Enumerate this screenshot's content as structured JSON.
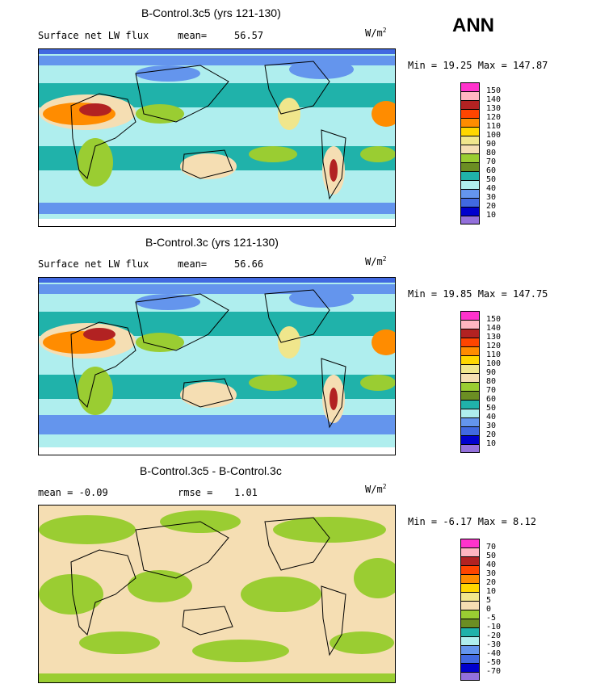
{
  "season": "ANN",
  "units_base": "W/m",
  "units_exp": "2",
  "panels": [
    {
      "title": "B-Control.3c5 (yrs 121-130)",
      "left_label": "Surface net LW flux",
      "mean_label": "mean=",
      "mean_value": "56.57",
      "minmax": "Min =  19.25 Max = 147.87",
      "colorbar": {
        "colors": [
          "#ff33cc",
          "#ffb6c1",
          "#b22222",
          "#ff4500",
          "#ff8c00",
          "#ffd700",
          "#f0e68c",
          "#f5deb3",
          "#9acd32",
          "#6b8e23",
          "#20b2aa",
          "#afeeee",
          "#6495ed",
          "#4169e1",
          "#0000cd",
          "#9370db"
        ],
        "labels": [
          "150",
          "140",
          "130",
          "120",
          "110",
          "100",
          "90",
          "80",
          "70",
          "60",
          "50",
          "40",
          "30",
          "20",
          "10"
        ]
      }
    },
    {
      "title": "B-Control.3c (yrs 121-130)",
      "left_label": "Surface net LW flux",
      "mean_label": "mean=",
      "mean_value": "56.66",
      "minmax": "Min =  19.85 Max = 147.75",
      "colorbar": {
        "colors": [
          "#ff33cc",
          "#ffb6c1",
          "#b22222",
          "#ff4500",
          "#ff8c00",
          "#ffd700",
          "#f0e68c",
          "#f5deb3",
          "#9acd32",
          "#6b8e23",
          "#20b2aa",
          "#afeeee",
          "#6495ed",
          "#4169e1",
          "#0000cd",
          "#9370db"
        ],
        "labels": [
          "150",
          "140",
          "130",
          "120",
          "110",
          "100",
          "90",
          "80",
          "70",
          "60",
          "50",
          "40",
          "30",
          "20",
          "10"
        ]
      }
    },
    {
      "title": "B-Control.3c5 - B-Control.3c",
      "left_label": "mean =  -0.09",
      "mean_label": "rmse =",
      "mean_value": "1.01",
      "minmax": "Min =  -6.17 Max =   8.12",
      "colorbar": {
        "colors": [
          "#ff33cc",
          "#ffb6c1",
          "#b22222",
          "#ff4500",
          "#ff8c00",
          "#ffd700",
          "#f0e68c",
          "#f5deb3",
          "#9acd32",
          "#6b8e23",
          "#20b2aa",
          "#afeeee",
          "#6495ed",
          "#4169e1",
          "#0000cd",
          "#9370db"
        ],
        "labels": [
          "70",
          "50",
          "40",
          "30",
          "20",
          "10",
          "5",
          "0",
          "-5",
          "-10",
          "-20",
          "-30",
          "-40",
          "-50",
          "-70"
        ]
      }
    }
  ]
}
